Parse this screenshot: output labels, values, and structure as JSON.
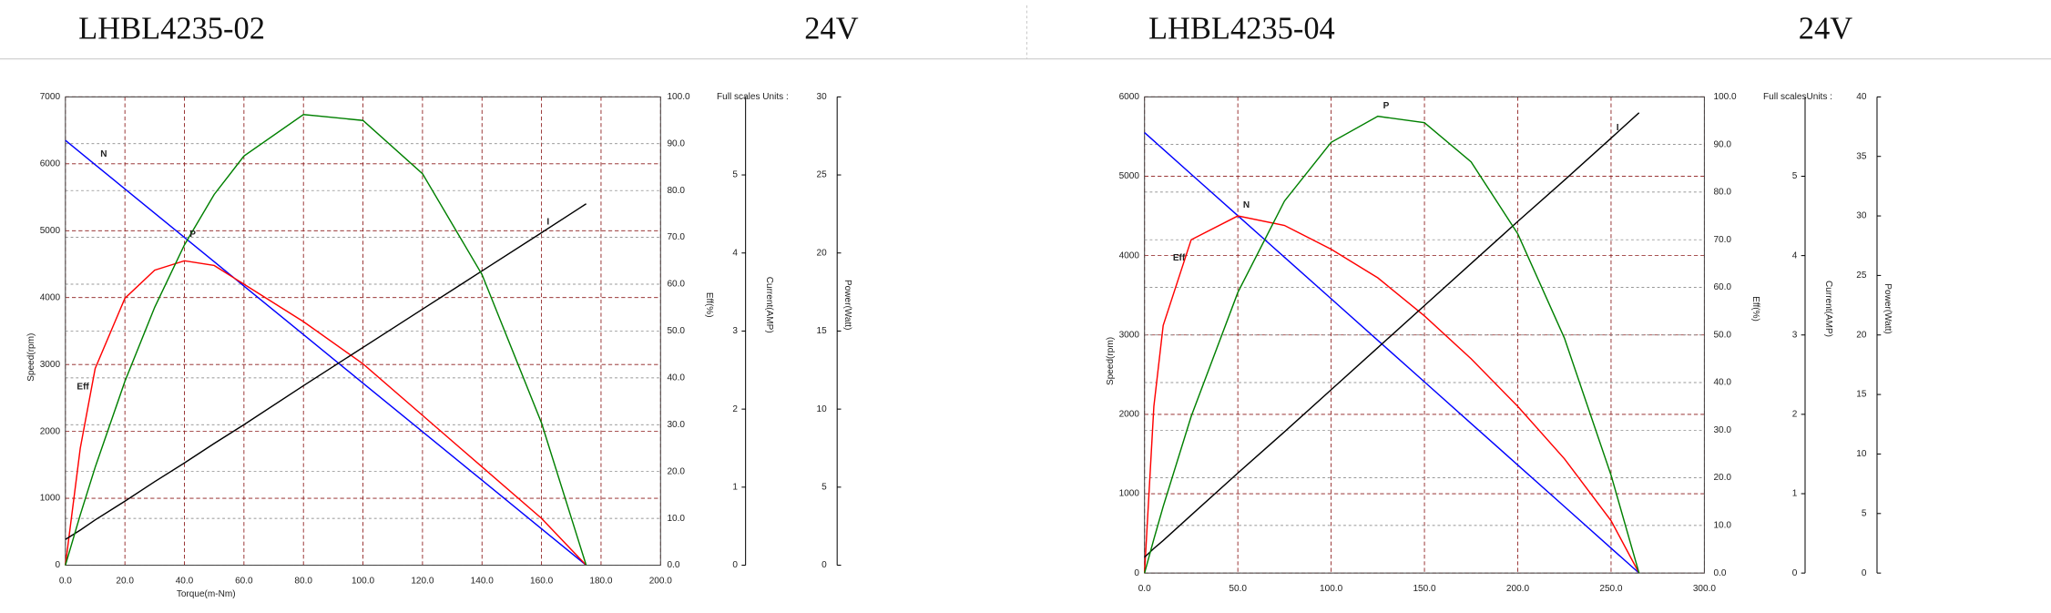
{
  "chart_data": [
    {
      "type": "line",
      "title": "LHBL4235-02",
      "subtitle": "24V",
      "xlabel": "Torque(m-Nm)",
      "ylabel": "Speed(rpm)",
      "y2label": "Eff(%)",
      "y3label": "Current(AMP)",
      "y4label": "Power(Watt)",
      "note": "Full scales Units :",
      "x": [
        0,
        5,
        10,
        20,
        30,
        40,
        50,
        60,
        80,
        100,
        120,
        140,
        160,
        175
      ],
      "xlim": [
        0,
        200
      ],
      "xticks": [
        {
          "value": 0,
          "label": "0.0"
        },
        {
          "value": 20,
          "label": "20.0"
        },
        {
          "value": 40,
          "label": "40.0"
        },
        {
          "value": 60,
          "label": "60.0"
        },
        {
          "value": 80,
          "label": "80.0"
        },
        {
          "value": 100,
          "label": "100.0"
        },
        {
          "value": 120,
          "label": "120.0"
        },
        {
          "value": 140,
          "label": "140.0"
        },
        {
          "value": 160,
          "label": "160.0"
        },
        {
          "value": 180,
          "label": "180.0"
        },
        {
          "value": 200,
          "label": "200.0"
        }
      ],
      "ylim": [
        0,
        7000
      ],
      "yticks": [
        0,
        1000,
        2000,
        3000,
        4000,
        5000,
        6000,
        7000
      ],
      "y2lim": [
        0,
        100
      ],
      "y2ticks": [
        {
          "value": 0,
          "label": "0.0"
        },
        {
          "value": 10,
          "label": "10.0"
        },
        {
          "value": 20,
          "label": "20.0"
        },
        {
          "value": 30,
          "label": "30.0"
        },
        {
          "value": 40,
          "label": "40.0"
        },
        {
          "value": 50,
          "label": "50.0"
        },
        {
          "value": 60,
          "label": "60.0"
        },
        {
          "value": 70,
          "label": "70.0"
        },
        {
          "value": 80,
          "label": "80.0"
        },
        {
          "value": 90,
          "label": "90.0"
        },
        {
          "value": 100,
          "label": "100.0"
        }
      ],
      "y3lim": [
        0,
        6
      ],
      "y3ticks": [
        0,
        1,
        2,
        3,
        4,
        5
      ],
      "y4lim": [
        0,
        30
      ],
      "y4ticks": [
        0,
        5,
        10,
        15,
        20,
        25,
        30
      ],
      "grid": true,
      "series": [
        {
          "name": "N",
          "color": "#0000ff",
          "axis": "y",
          "values": [
            6350,
            6169,
            5987,
            5624,
            5261,
            4899,
            4536,
            4173,
            3447,
            2721,
            1996,
            1270,
            544,
            0
          ]
        },
        {
          "name": "Eff",
          "color": "#ff0000",
          "axis": "y2",
          "values": [
            0,
            25,
            42,
            57,
            63,
            65,
            64,
            60,
            52,
            43,
            32,
            21,
            10,
            0
          ]
        },
        {
          "name": "I",
          "color": "#000000",
          "axis": "y3",
          "values": [
            0.33,
            0.45,
            0.58,
            0.82,
            1.07,
            1.31,
            1.56,
            1.8,
            2.3,
            2.79,
            3.28,
            3.77,
            4.26,
            4.63
          ]
        },
        {
          "name": "P",
          "color": "#008000",
          "axis": "y4",
          "values": [
            0,
            3.23,
            6.27,
            11.78,
            16.52,
            20.52,
            23.75,
            26.21,
            28.87,
            28.49,
            25.08,
            18.62,
            9.11,
            0
          ]
        }
      ]
    },
    {
      "type": "line",
      "title": "LHBL4235-04",
      "subtitle": "24V",
      "ylabel": "Speed(rpm)",
      "y2label": "Eff(%)",
      "y3label": "Current(AMP)",
      "y4label": "Power(Watt)",
      "note": "Full scalesUnits :",
      "x": [
        0,
        5,
        10,
        25,
        50,
        75,
        100,
        125,
        150,
        175,
        200,
        225,
        250,
        265
      ],
      "xlim": [
        0,
        300
      ],
      "xticks": [
        {
          "value": 0,
          "label": "0.0"
        },
        {
          "value": 50,
          "label": "50.0"
        },
        {
          "value": 100,
          "label": "100.0"
        },
        {
          "value": 150,
          "label": "150.0"
        },
        {
          "value": 200,
          "label": "200.0"
        },
        {
          "value": 250,
          "label": "250.0"
        },
        {
          "value": 300,
          "label": "300.0"
        }
      ],
      "ylim": [
        0,
        6000
      ],
      "yticks": [
        0,
        1000,
        2000,
        3000,
        4000,
        5000,
        6000
      ],
      "y2lim": [
        0,
        100
      ],
      "y2ticks": [
        {
          "value": 0,
          "label": "0.0"
        },
        {
          "value": 10,
          "label": "10.0"
        },
        {
          "value": 20,
          "label": "20.0"
        },
        {
          "value": 30,
          "label": "30.0"
        },
        {
          "value": 40,
          "label": "40.0"
        },
        {
          "value": 50,
          "label": "50.0"
        },
        {
          "value": 60,
          "label": "60.0"
        },
        {
          "value": 70,
          "label": "70.0"
        },
        {
          "value": 80,
          "label": "80.0"
        },
        {
          "value": 90,
          "label": "90.0"
        },
        {
          "value": 100,
          "label": "100.0"
        }
      ],
      "y3lim": [
        0,
        6
      ],
      "y3ticks": [
        0,
        1,
        2,
        3,
        4,
        5
      ],
      "y4lim": [
        0,
        40
      ],
      "y4ticks": [
        0,
        5,
        10,
        15,
        20,
        25,
        30,
        35,
        40
      ],
      "grid": true,
      "series": [
        {
          "name": "N",
          "color": "#0000ff",
          "axis": "y",
          "values": [
            5550,
            5445,
            5341,
            5026,
            4503,
            3979,
            3456,
            2932,
            2409,
            1885,
            1361,
            838,
            314,
            0
          ]
        },
        {
          "name": "Eff",
          "color": "#ff0000",
          "axis": "y2",
          "values": [
            0,
            35,
            52,
            70,
            75,
            73,
            68,
            62,
            54,
            45,
            35,
            24,
            11,
            0
          ]
        },
        {
          "name": "I",
          "color": "#000000",
          "axis": "y3",
          "values": [
            0.2,
            0.31,
            0.41,
            0.73,
            1.26,
            1.78,
            2.31,
            2.84,
            3.37,
            3.9,
            4.43,
            4.95,
            5.48,
            5.8
          ]
        },
        {
          "name": "P",
          "color": "#008000",
          "axis": "y4",
          "values": [
            0,
            2.85,
            5.59,
            13.16,
            23.57,
            31.25,
            36.18,
            38.37,
            37.83,
            34.54,
            28.5,
            19.74,
            8.22,
            0
          ]
        }
      ]
    }
  ]
}
